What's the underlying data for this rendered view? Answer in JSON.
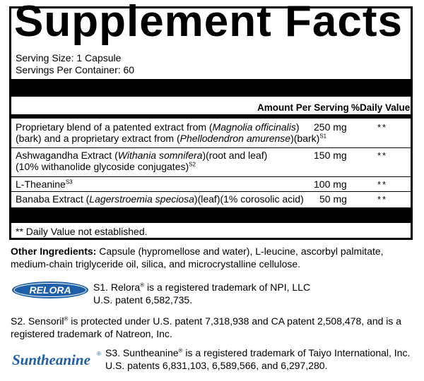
{
  "panel": {
    "title": "Supplement Facts",
    "serving_size": "Serving Size: 1 Capsule",
    "servings_per_container": "Servings Per Container: 60",
    "header_amount": "Amount Per Serving",
    "header_dv": "%Daily Value",
    "rows": [
      {
        "line1_a": "Proprietary blend of a patented extract from (",
        "line1_i": "Magnolia officinalis",
        "line1_b": ")",
        "line2_a": "(bark) and a proprietary extract from (",
        "line2_i": "Phellodendron amurense",
        "line2_b": ")(bark)",
        "sup": "S1",
        "amount": "250 mg",
        "dv": "**"
      },
      {
        "line1_a": "Ashwagandha Extract (",
        "line1_i": "Withania somnifera",
        "line1_b": ")(root and leaf)",
        "line2_a": "(10% withanolide glycoside conjugates)",
        "sup": "S2",
        "amount": "150 mg",
        "dv": "**"
      },
      {
        "line1_a": "L-Theanine",
        "sup": "S3",
        "amount": "100 mg",
        "dv": "**"
      },
      {
        "line1_a": "Banaba Extract (",
        "line1_i": "Lagerstroemia speciosa",
        "line1_b": ")(leaf)(1% corosolic acid)",
        "amount": "50 mg",
        "dv": "**"
      }
    ],
    "footnote": "** Daily Value not established."
  },
  "other_ingredients": {
    "label": "Other Ingredients:",
    "text": " Capsule (hypromellose and water), L-leucine, ascorbyl palmitate, medium-chain triglyceride oil, silica, and microcrystalline cellulose."
  },
  "trademarks": {
    "relora_logo_text": "RELORA",
    "s1_line1_a": "S1. Relora",
    "s1_line1_b": " is a registered trademark of NPI, LLC",
    "s1_line2": "U.S. patent 6,582,735.",
    "s2_a": "S2. Sensoril",
    "s2_b": " is protected under U.S. patent 7,318,938 and CA patent 2,508,478, and is a registered trademark of Natreon, Inc.",
    "suntheanine_logo_text": "Suntheanine",
    "s3_line1_a": "S3. Suntheanine",
    "s3_line1_b": " is a registered trademark of Taiyo International, Inc.",
    "s3_line2": "U.S. patents 6,831,103, 6,589,566, and 6,297,280.",
    "registered_symbol": "®"
  },
  "colors": {
    "logo_blue": "#1f5fa8",
    "logo_dark_blue": "#17407a"
  }
}
